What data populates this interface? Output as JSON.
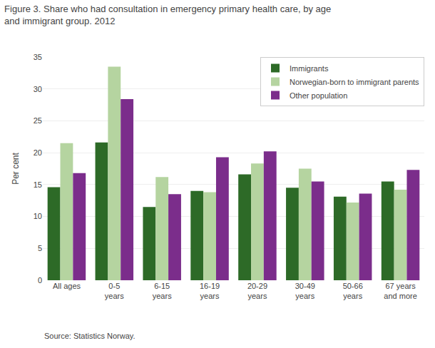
{
  "chart_data": {
    "type": "bar",
    "title": "Figure 3. Share who had consultation in emergency primary health care, by age\nand immigrant group. 2012",
    "y_label": "Per cent",
    "annotations": [
      "Source: Statistics Norway."
    ],
    "categories": [
      "All ages",
      "0-5\nyears",
      "6-15\nyears",
      "16-19\nyears",
      "20-29\nyears",
      "30-49\nyears",
      "50-66\nyears",
      "67 years\nand more"
    ],
    "series": [
      {
        "name": "Immigrants",
        "color": "#2d6a27",
        "values": [
          14.6,
          21.6,
          11.5,
          14.0,
          16.6,
          14.5,
          13.1,
          15.5
        ]
      },
      {
        "name": "Norwegian-born to immigrant parents",
        "color": "#b5d4a0",
        "values": [
          21.5,
          33.5,
          16.2,
          13.8,
          18.3,
          17.5,
          12.2,
          14.2
        ]
      },
      {
        "name": "Other population",
        "color": "#7b2d8b",
        "values": [
          16.8,
          28.4,
          13.5,
          19.3,
          20.2,
          15.5,
          13.6,
          17.3
        ]
      }
    ],
    "ylim": [
      0,
      35
    ],
    "yticks": [
      0,
      5,
      10,
      15,
      20,
      25,
      30,
      35
    ],
    "grid": true,
    "legend": "upper right"
  }
}
